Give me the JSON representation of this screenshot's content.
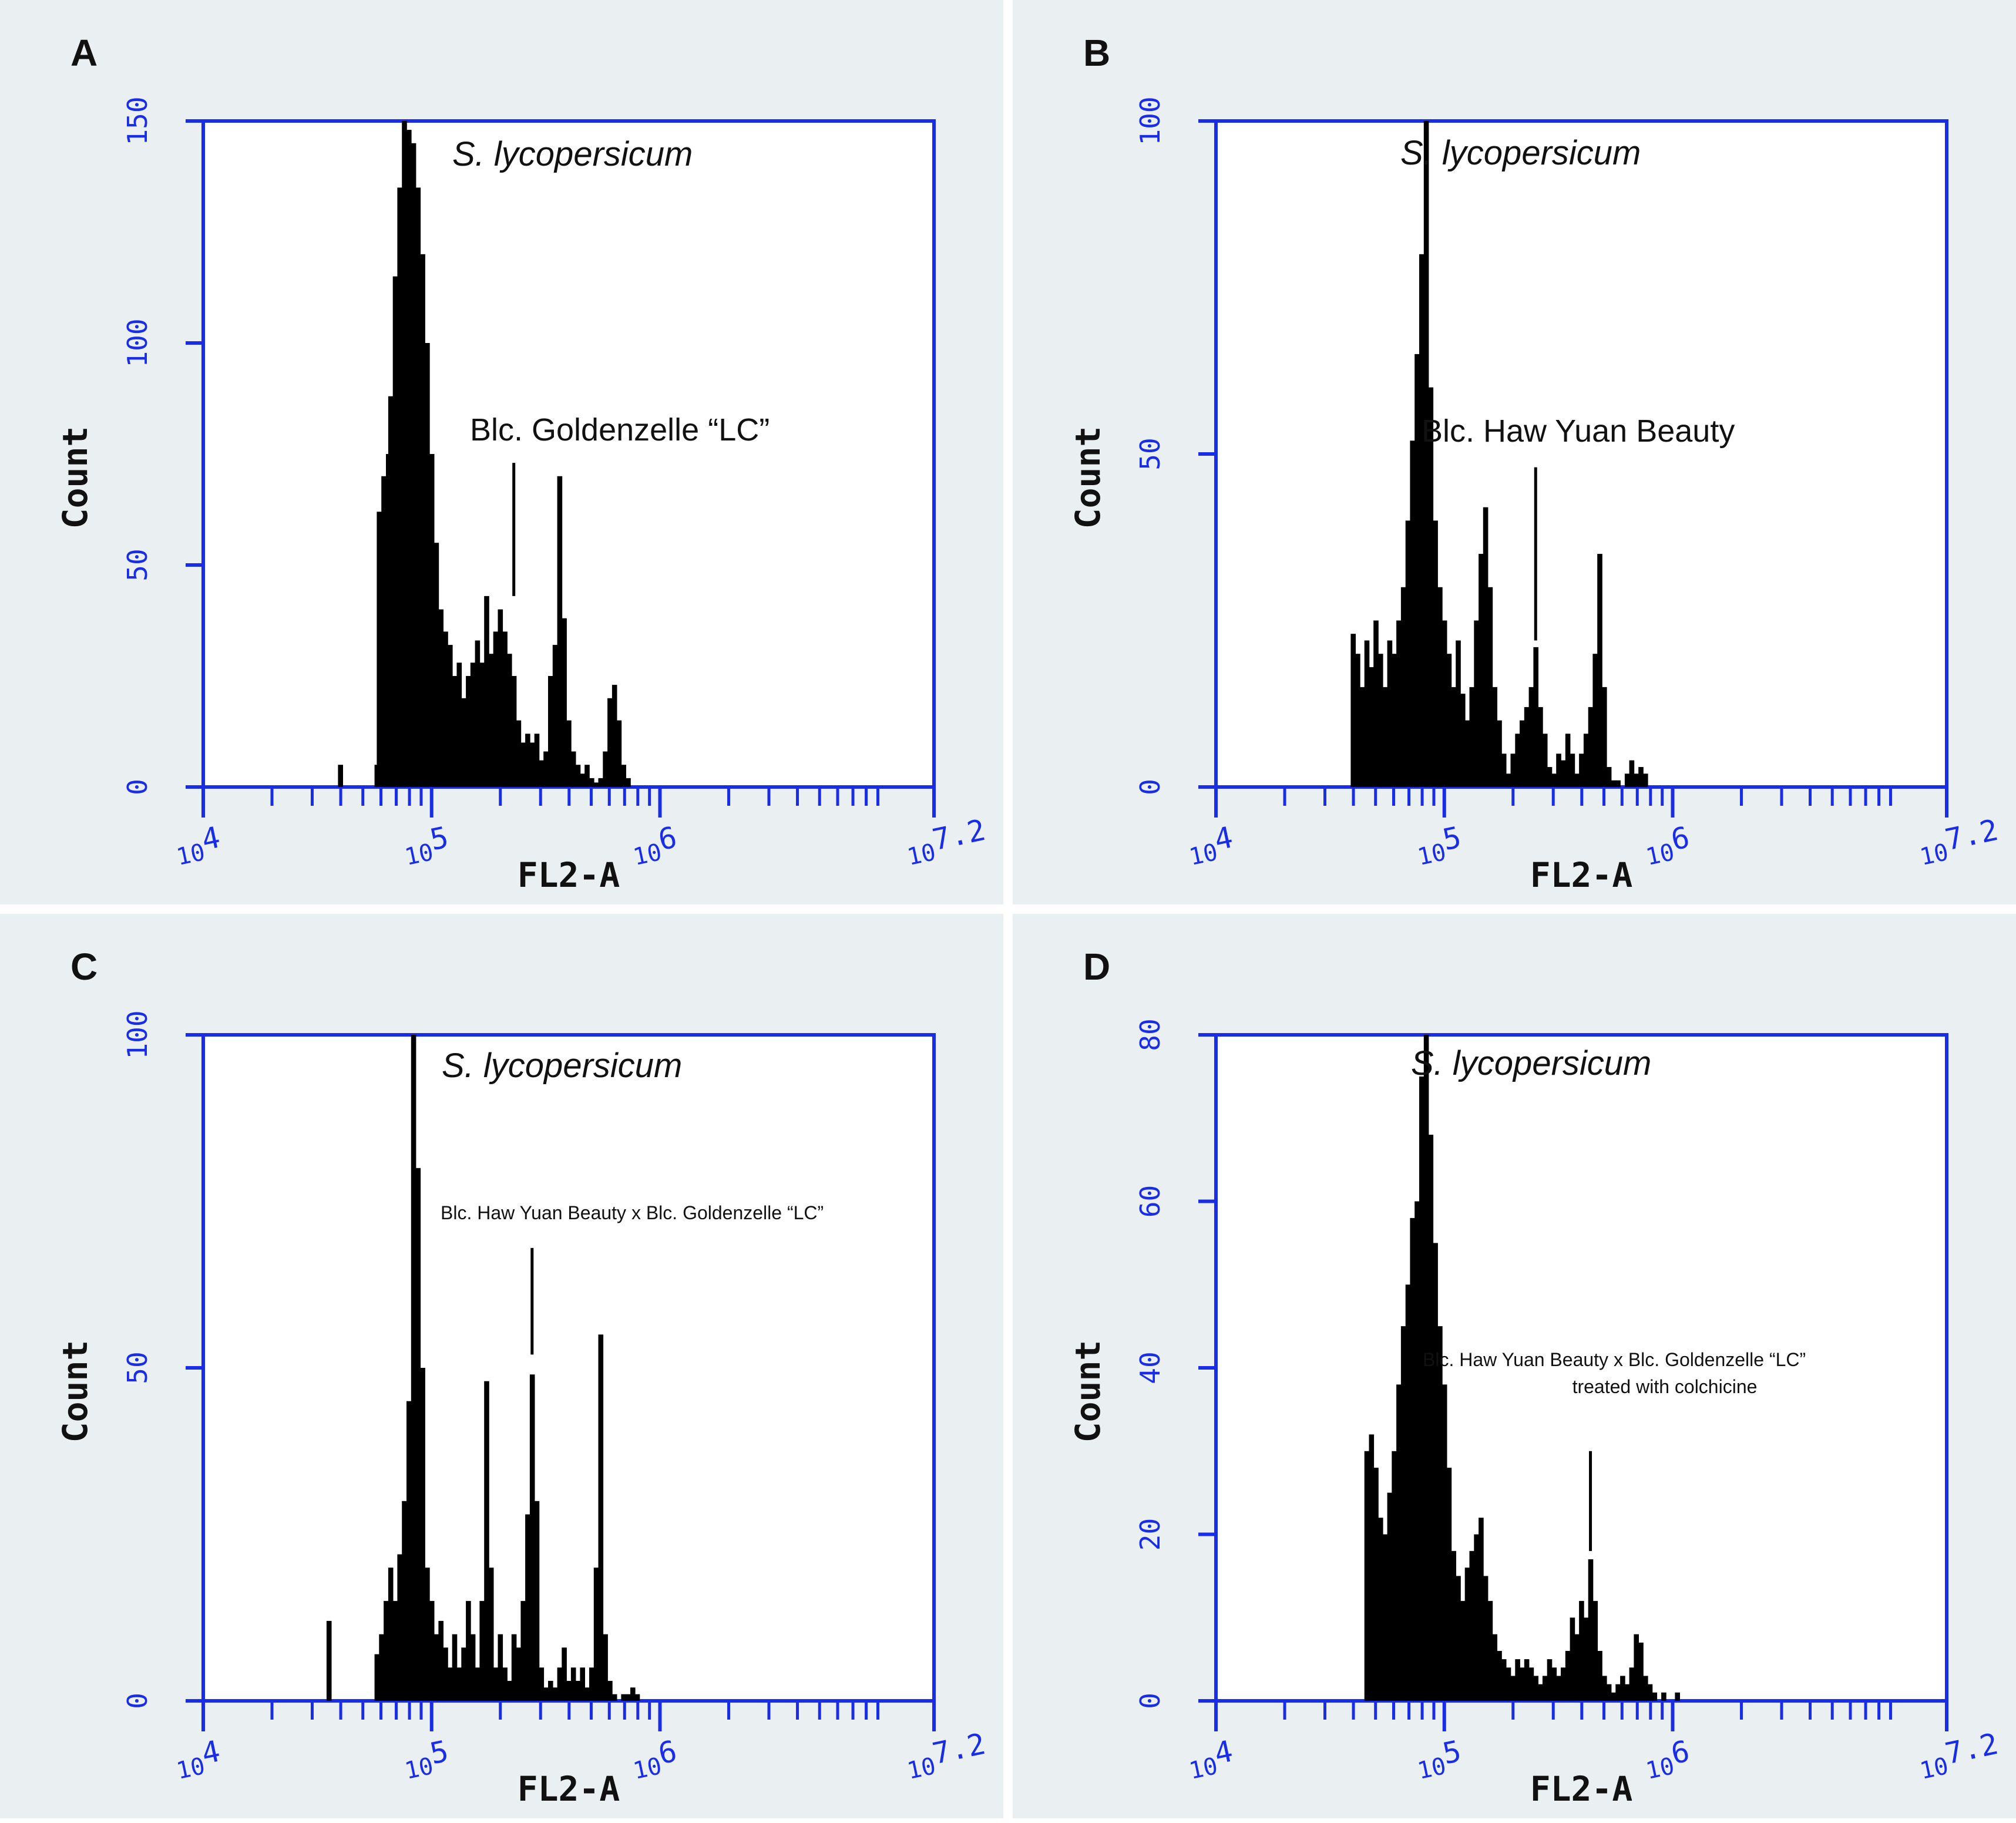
{
  "chart_data": [
    {
      "panel": "A",
      "type": "bar",
      "xlabel": "FL2-A",
      "ylabel": "Count",
      "x_scale": "log",
      "xlim": [
        10000,
        15848932
      ],
      "ylim": [
        0,
        150
      ],
      "yticks": [
        "0",
        "50",
        "100",
        "150"
      ],
      "xticks": [
        {
          "base": "10",
          "exp": "4",
          "value": 10000
        },
        {
          "base": "10",
          "exp": "5",
          "value": 100000
        },
        {
          "base": "10",
          "exp": "6",
          "value": 1000000
        },
        {
          "base": "10",
          "exp": "7.2",
          "value": 15848932
        }
      ],
      "histogram": [
        [
          4.6,
          5
        ],
        [
          4.76,
          5
        ],
        [
          4.77,
          62
        ],
        [
          4.79,
          70
        ],
        [
          4.81,
          75
        ],
        [
          4.82,
          88
        ],
        [
          4.84,
          115
        ],
        [
          4.86,
          135
        ],
        [
          4.88,
          150
        ],
        [
          4.9,
          148
        ],
        [
          4.92,
          145
        ],
        [
          4.94,
          135
        ],
        [
          4.96,
          120
        ],
        [
          4.98,
          100
        ],
        [
          5.0,
          75
        ],
        [
          5.02,
          55
        ],
        [
          5.04,
          40
        ],
        [
          5.06,
          35
        ],
        [
          5.08,
          32
        ],
        [
          5.1,
          25
        ],
        [
          5.12,
          28
        ],
        [
          5.14,
          20
        ],
        [
          5.16,
          25
        ],
        [
          5.18,
          28
        ],
        [
          5.2,
          33
        ],
        [
          5.22,
          28
        ],
        [
          5.24,
          43
        ],
        [
          5.26,
          30
        ],
        [
          5.28,
          35
        ],
        [
          5.3,
          40
        ],
        [
          5.32,
          35
        ],
        [
          5.34,
          30
        ],
        [
          5.36,
          25
        ],
        [
          5.38,
          15
        ],
        [
          5.4,
          10
        ],
        [
          5.42,
          12
        ],
        [
          5.44,
          10
        ],
        [
          5.46,
          12
        ],
        [
          5.48,
          6
        ],
        [
          5.5,
          8
        ],
        [
          5.52,
          25
        ],
        [
          5.54,
          32
        ],
        [
          5.56,
          70
        ],
        [
          5.58,
          38
        ],
        [
          5.6,
          15
        ],
        [
          5.62,
          8
        ],
        [
          5.64,
          5
        ],
        [
          5.66,
          3
        ],
        [
          5.68,
          5
        ],
        [
          5.7,
          2
        ],
        [
          5.72,
          1
        ],
        [
          5.74,
          2
        ],
        [
          5.76,
          8
        ],
        [
          5.78,
          20
        ],
        [
          5.8,
          23
        ],
        [
          5.82,
          15
        ],
        [
          5.84,
          5
        ],
        [
          5.86,
          2
        ]
      ],
      "annotations": [
        {
          "text": "S. lycopersicum",
          "italic": true,
          "peak_x": 4.9,
          "pointer": false
        },
        {
          "text": "Blc. Goldenzelle “LC”",
          "italic": false,
          "peak_x": 5.36,
          "pointer": true,
          "pointer_top": 73,
          "pointer_bottom": 43
        }
      ]
    },
    {
      "panel": "B",
      "type": "bar",
      "xlabel": "FL2-A",
      "ylabel": "Count",
      "x_scale": "log",
      "xlim": [
        10000,
        15848932
      ],
      "ylim": [
        0,
        100
      ],
      "yticks": [
        "0",
        "50",
        "100"
      ],
      "xticks": [
        {
          "base": "10",
          "exp": "4",
          "value": 10000
        },
        {
          "base": "10",
          "exp": "5",
          "value": 100000
        },
        {
          "base": "10",
          "exp": "6",
          "value": 1000000
        },
        {
          "base": "10",
          "exp": "7.2",
          "value": 15848932
        }
      ],
      "histogram": [
        [
          4.6,
          23
        ],
        [
          4.62,
          20
        ],
        [
          4.64,
          15
        ],
        [
          4.66,
          22
        ],
        [
          4.68,
          18
        ],
        [
          4.7,
          25
        ],
        [
          4.72,
          20
        ],
        [
          4.74,
          15
        ],
        [
          4.76,
          22
        ],
        [
          4.78,
          20
        ],
        [
          4.8,
          25
        ],
        [
          4.82,
          30
        ],
        [
          4.84,
          40
        ],
        [
          4.86,
          52
        ],
        [
          4.88,
          65
        ],
        [
          4.9,
          80
        ],
        [
          4.92,
          100
        ],
        [
          4.94,
          60
        ],
        [
          4.96,
          40
        ],
        [
          4.98,
          30
        ],
        [
          5.0,
          25
        ],
        [
          5.02,
          20
        ],
        [
          5.04,
          15
        ],
        [
          5.06,
          22
        ],
        [
          5.08,
          14
        ],
        [
          5.1,
          10
        ],
        [
          5.12,
          15
        ],
        [
          5.14,
          25
        ],
        [
          5.16,
          35
        ],
        [
          5.18,
          42
        ],
        [
          5.2,
          30
        ],
        [
          5.22,
          15
        ],
        [
          5.24,
          10
        ],
        [
          5.26,
          5
        ],
        [
          5.28,
          2
        ],
        [
          5.3,
          5
        ],
        [
          5.32,
          8
        ],
        [
          5.34,
          10
        ],
        [
          5.36,
          12
        ],
        [
          5.38,
          15
        ],
        [
          5.4,
          21
        ],
        [
          5.42,
          12
        ],
        [
          5.44,
          8
        ],
        [
          5.46,
          3
        ],
        [
          5.48,
          2
        ],
        [
          5.5,
          5
        ],
        [
          5.52,
          4
        ],
        [
          5.54,
          8
        ],
        [
          5.56,
          5
        ],
        [
          5.58,
          2
        ],
        [
          5.6,
          5
        ],
        [
          5.62,
          8
        ],
        [
          5.64,
          12
        ],
        [
          5.66,
          20
        ],
        [
          5.68,
          35
        ],
        [
          5.7,
          15
        ],
        [
          5.72,
          3
        ],
        [
          5.74,
          1
        ],
        [
          5.76,
          1
        ],
        [
          5.8,
          2
        ],
        [
          5.82,
          4
        ],
        [
          5.84,
          2
        ],
        [
          5.86,
          3
        ],
        [
          5.88,
          2
        ]
      ],
      "annotations": [
        {
          "text": "S. lycopersicum",
          "italic": true,
          "peak_x": 4.92,
          "pointer": false
        },
        {
          "text": "Blc. Haw Yuan Beauty",
          "italic": false,
          "peak_x": 5.4,
          "pointer": true,
          "pointer_top": 48,
          "pointer_bottom": 22
        }
      ]
    },
    {
      "panel": "C",
      "type": "bar",
      "xlabel": "FL2-A",
      "ylabel": "Count",
      "x_scale": "log",
      "xlim": [
        10000,
        15848932
      ],
      "ylim": [
        0,
        100
      ],
      "yticks": [
        "0",
        "50",
        "100"
      ],
      "xticks": [
        {
          "base": "10",
          "exp": "4",
          "value": 10000
        },
        {
          "base": "10",
          "exp": "5",
          "value": 100000
        },
        {
          "base": "10",
          "exp": "6",
          "value": 1000000
        },
        {
          "base": "10",
          "exp": "7.2",
          "value": 15848932
        }
      ],
      "histogram": [
        [
          4.55,
          12
        ],
        [
          4.76,
          7
        ],
        [
          4.78,
          10
        ],
        [
          4.8,
          15
        ],
        [
          4.82,
          20
        ],
        [
          4.84,
          15
        ],
        [
          4.86,
          22
        ],
        [
          4.88,
          30
        ],
        [
          4.9,
          45
        ],
        [
          4.92,
          100
        ],
        [
          4.94,
          80
        ],
        [
          4.96,
          50
        ],
        [
          4.98,
          20
        ],
        [
          5.0,
          15
        ],
        [
          5.02,
          10
        ],
        [
          5.04,
          12
        ],
        [
          5.06,
          8
        ],
        [
          5.08,
          5
        ],
        [
          5.1,
          10
        ],
        [
          5.12,
          5
        ],
        [
          5.14,
          8
        ],
        [
          5.16,
          15
        ],
        [
          5.18,
          10
        ],
        [
          5.2,
          5
        ],
        [
          5.22,
          15
        ],
        [
          5.24,
          48
        ],
        [
          5.26,
          20
        ],
        [
          5.28,
          5
        ],
        [
          5.3,
          10
        ],
        [
          5.32,
          5
        ],
        [
          5.34,
          3
        ],
        [
          5.36,
          10
        ],
        [
          5.38,
          8
        ],
        [
          5.4,
          15
        ],
        [
          5.42,
          28
        ],
        [
          5.44,
          49
        ],
        [
          5.46,
          30
        ],
        [
          5.48,
          5
        ],
        [
          5.5,
          2
        ],
        [
          5.52,
          3
        ],
        [
          5.54,
          2
        ],
        [
          5.56,
          5
        ],
        [
          5.58,
          8
        ],
        [
          5.6,
          3
        ],
        [
          5.62,
          5
        ],
        [
          5.64,
          3
        ],
        [
          5.66,
          5
        ],
        [
          5.68,
          2
        ],
        [
          5.7,
          5
        ],
        [
          5.72,
          20
        ],
        [
          5.74,
          55
        ],
        [
          5.76,
          10
        ],
        [
          5.78,
          3
        ],
        [
          5.8,
          1
        ],
        [
          5.84,
          1
        ],
        [
          5.86,
          1
        ],
        [
          5.88,
          2
        ],
        [
          5.9,
          1
        ]
      ],
      "annotations": [
        {
          "text": "S. lycopersicum",
          "italic": true,
          "peak_x": 4.92,
          "pointer": false
        },
        {
          "text": "Blc. Haw Yuan Beauty x Blc. Goldenzelle “LC”",
          "italic": false,
          "peak_x": 5.44,
          "pointer": true,
          "pointer_top": 68,
          "pointer_bottom": 52
        }
      ]
    },
    {
      "panel": "D",
      "type": "bar",
      "xlabel": "FL2-A",
      "ylabel": "Count",
      "x_scale": "log",
      "xlim": [
        10000,
        15848932
      ],
      "ylim": [
        0,
        80
      ],
      "yticks": [
        "0",
        "20",
        "40",
        "60",
        "80"
      ],
      "xticks": [
        {
          "base": "10",
          "exp": "4",
          "value": 10000
        },
        {
          "base": "10",
          "exp": "5",
          "value": 100000
        },
        {
          "base": "10",
          "exp": "6",
          "value": 1000000
        },
        {
          "base": "10",
          "exp": "7.2",
          "value": 15848932
        }
      ],
      "histogram": [
        [
          4.66,
          30
        ],
        [
          4.68,
          32
        ],
        [
          4.7,
          28
        ],
        [
          4.72,
          22
        ],
        [
          4.74,
          20
        ],
        [
          4.76,
          25
        ],
        [
          4.78,
          30
        ],
        [
          4.8,
          38
        ],
        [
          4.82,
          45
        ],
        [
          4.84,
          50
        ],
        [
          4.86,
          58
        ],
        [
          4.88,
          60
        ],
        [
          4.9,
          75
        ],
        [
          4.92,
          80
        ],
        [
          4.94,
          68
        ],
        [
          4.96,
          55
        ],
        [
          4.98,
          45
        ],
        [
          5.0,
          38
        ],
        [
          5.02,
          28
        ],
        [
          5.04,
          18
        ],
        [
          5.06,
          15
        ],
        [
          5.08,
          12
        ],
        [
          5.1,
          16
        ],
        [
          5.12,
          18
        ],
        [
          5.14,
          20
        ],
        [
          5.16,
          22
        ],
        [
          5.18,
          15
        ],
        [
          5.2,
          12
        ],
        [
          5.22,
          8
        ],
        [
          5.24,
          6
        ],
        [
          5.26,
          5
        ],
        [
          5.28,
          4
        ],
        [
          5.3,
          3
        ],
        [
          5.32,
          5
        ],
        [
          5.34,
          4
        ],
        [
          5.36,
          5
        ],
        [
          5.38,
          4
        ],
        [
          5.4,
          3
        ],
        [
          5.42,
          2
        ],
        [
          5.44,
          3
        ],
        [
          5.46,
          5
        ],
        [
          5.48,
          4
        ],
        [
          5.5,
          3
        ],
        [
          5.52,
          4
        ],
        [
          5.54,
          6
        ],
        [
          5.56,
          10
        ],
        [
          5.58,
          8
        ],
        [
          5.6,
          12
        ],
        [
          5.62,
          10
        ],
        [
          5.64,
          17
        ],
        [
          5.66,
          12
        ],
        [
          5.68,
          6
        ],
        [
          5.7,
          3
        ],
        [
          5.72,
          2
        ],
        [
          5.74,
          1
        ],
        [
          5.76,
          2
        ],
        [
          5.78,
          3
        ],
        [
          5.8,
          2
        ],
        [
          5.82,
          4
        ],
        [
          5.84,
          8
        ],
        [
          5.86,
          7
        ],
        [
          5.88,
          3
        ],
        [
          5.9,
          2
        ],
        [
          5.92,
          1
        ],
        [
          5.96,
          1
        ],
        [
          6.02,
          1
        ]
      ],
      "annotations": [
        {
          "text": "S. lycopersicum",
          "italic": true,
          "peak_x": 4.92,
          "pointer": false
        },
        {
          "text": "Blc. Haw Yuan Beauty x Blc. Goldenzelle “LC”",
          "italic": false,
          "peak_x": 5.64,
          "pointer": true,
          "pointer_top": 30,
          "pointer_bottom": 18
        },
        {
          "text": "treated with colchicine",
          "italic": false,
          "peak_x": 5.64,
          "pointer": false
        }
      ]
    }
  ]
}
